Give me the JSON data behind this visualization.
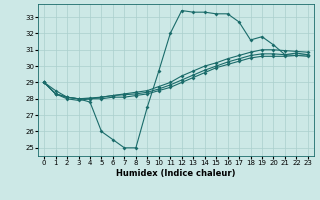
{
  "title": "",
  "xlabel": "Humidex (Indice chaleur)",
  "ylabel": "",
  "bg_color": "#cce8e6",
  "grid_color": "#aacfcd",
  "line_color": "#1a6b6a",
  "xlim": [
    -0.5,
    23.5
  ],
  "ylim": [
    24.5,
    33.8
  ],
  "yticks": [
    25,
    26,
    27,
    28,
    29,
    30,
    31,
    32,
    33
  ],
  "xticks": [
    0,
    1,
    2,
    3,
    4,
    5,
    6,
    7,
    8,
    9,
    10,
    11,
    12,
    13,
    14,
    15,
    16,
    17,
    18,
    19,
    20,
    21,
    22,
    23
  ],
  "line1_x": [
    0,
    1,
    2,
    3,
    4,
    5,
    6,
    7,
    8,
    9,
    10,
    11,
    12,
    13,
    14,
    15,
    16,
    17,
    18,
    19,
    20,
    21,
    22,
    23
  ],
  "line1_y": [
    29.0,
    28.5,
    28.1,
    28.0,
    27.8,
    26.0,
    25.5,
    25.0,
    25.0,
    27.5,
    29.7,
    32.0,
    33.4,
    33.3,
    33.3,
    33.2,
    33.2,
    32.7,
    31.6,
    31.8,
    31.3,
    30.7,
    30.8,
    30.7
  ],
  "line2_x": [
    0,
    1,
    2,
    3,
    4,
    5,
    6,
    7,
    8,
    9,
    10,
    11,
    12,
    13,
    14,
    15,
    16,
    17,
    18,
    19,
    20,
    21,
    22,
    23
  ],
  "line2_y": [
    29.0,
    28.3,
    28.1,
    28.0,
    28.0,
    28.0,
    28.1,
    28.1,
    28.2,
    28.3,
    28.5,
    28.7,
    29.0,
    29.3,
    29.6,
    29.9,
    30.1,
    30.3,
    30.5,
    30.6,
    30.6,
    30.6,
    30.65,
    30.7
  ],
  "line3_x": [
    0,
    1,
    2,
    3,
    4,
    5,
    6,
    7,
    8,
    9,
    10,
    11,
    12,
    13,
    14,
    15,
    16,
    17,
    18,
    19,
    20,
    21,
    22,
    23
  ],
  "line3_y": [
    29.0,
    28.3,
    28.1,
    28.0,
    28.05,
    28.1,
    28.2,
    28.3,
    28.4,
    28.5,
    28.75,
    29.0,
    29.4,
    29.7,
    30.0,
    30.2,
    30.45,
    30.65,
    30.85,
    31.0,
    31.0,
    30.95,
    30.9,
    30.85
  ],
  "line4_x": [
    0,
    1,
    2,
    3,
    4,
    5,
    6,
    7,
    8,
    9,
    10,
    11,
    12,
    13,
    14,
    15,
    16,
    17,
    18,
    19,
    20,
    21,
    22,
    23
  ],
  "line4_y": [
    29.0,
    28.3,
    28.0,
    27.9,
    28.0,
    28.1,
    28.2,
    28.25,
    28.3,
    28.4,
    28.6,
    28.85,
    29.15,
    29.45,
    29.75,
    30.0,
    30.25,
    30.45,
    30.65,
    30.75,
    30.75,
    30.7,
    30.65,
    30.6
  ]
}
